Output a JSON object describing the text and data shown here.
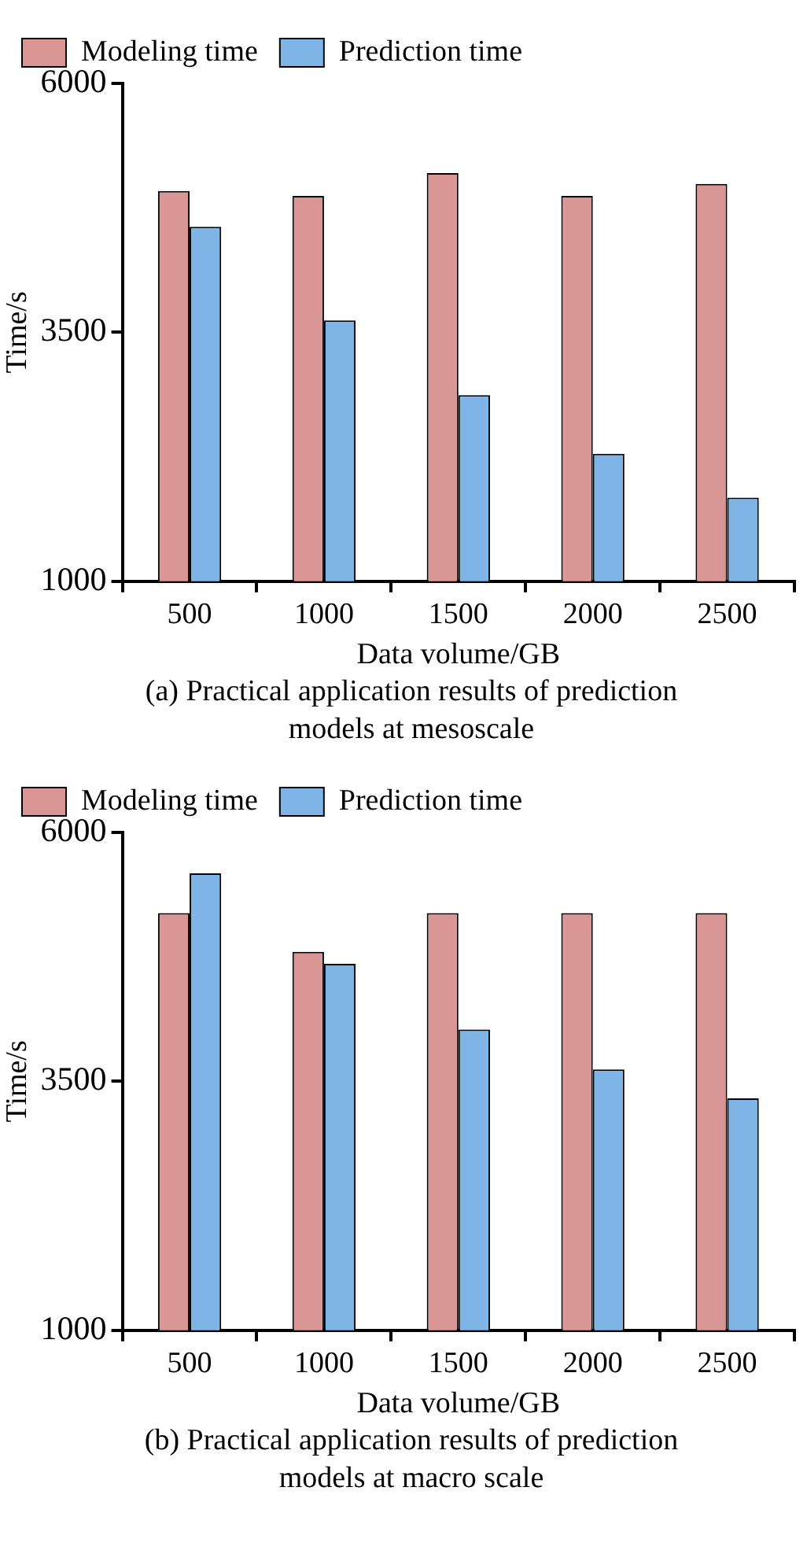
{
  "chart_data": [
    {
      "type": "bar",
      "xlabel": "Data volume/GB",
      "ylabel": "Time/s",
      "categories": [
        "500",
        "1000",
        "1500",
        "2000",
        "2500"
      ],
      "series": [
        {
          "name": "Modeling time",
          "color": "#d99694",
          "values": [
            4920,
            4870,
            5100,
            4870,
            4990
          ]
        },
        {
          "name": "Prediction time",
          "color": "#7fb5e6",
          "values": [
            4560,
            3620,
            2870,
            2280,
            1840
          ]
        }
      ],
      "ylim": [
        1000,
        6000
      ],
      "yticks": [
        1000,
        3500,
        6000
      ],
      "grid": false,
      "legend": "top left",
      "annotations": [
        "(a) Practical application results of prediction models at mesoscale"
      ]
    },
    {
      "type": "bar",
      "xlabel": "Data volume/GB",
      "ylabel": "Time/s",
      "categories": [
        "500",
        "1000",
        "1500",
        "2000",
        "2500"
      ],
      "series": [
        {
          "name": "Modeling time",
          "color": "#d99694",
          "values": [
            5190,
            4800,
            5190,
            5190,
            5190
          ]
        },
        {
          "name": "Prediction time",
          "color": "#7fb5e6",
          "values": [
            5590,
            4680,
            4020,
            3620,
            3330
          ]
        }
      ],
      "ylim": [
        1000,
        6000
      ],
      "yticks": [
        1000,
        3500,
        6000
      ],
      "grid": false,
      "legend": "top left",
      "annotations": [
        "(b) Practical application results of prediction models at macro scale"
      ]
    }
  ]
}
